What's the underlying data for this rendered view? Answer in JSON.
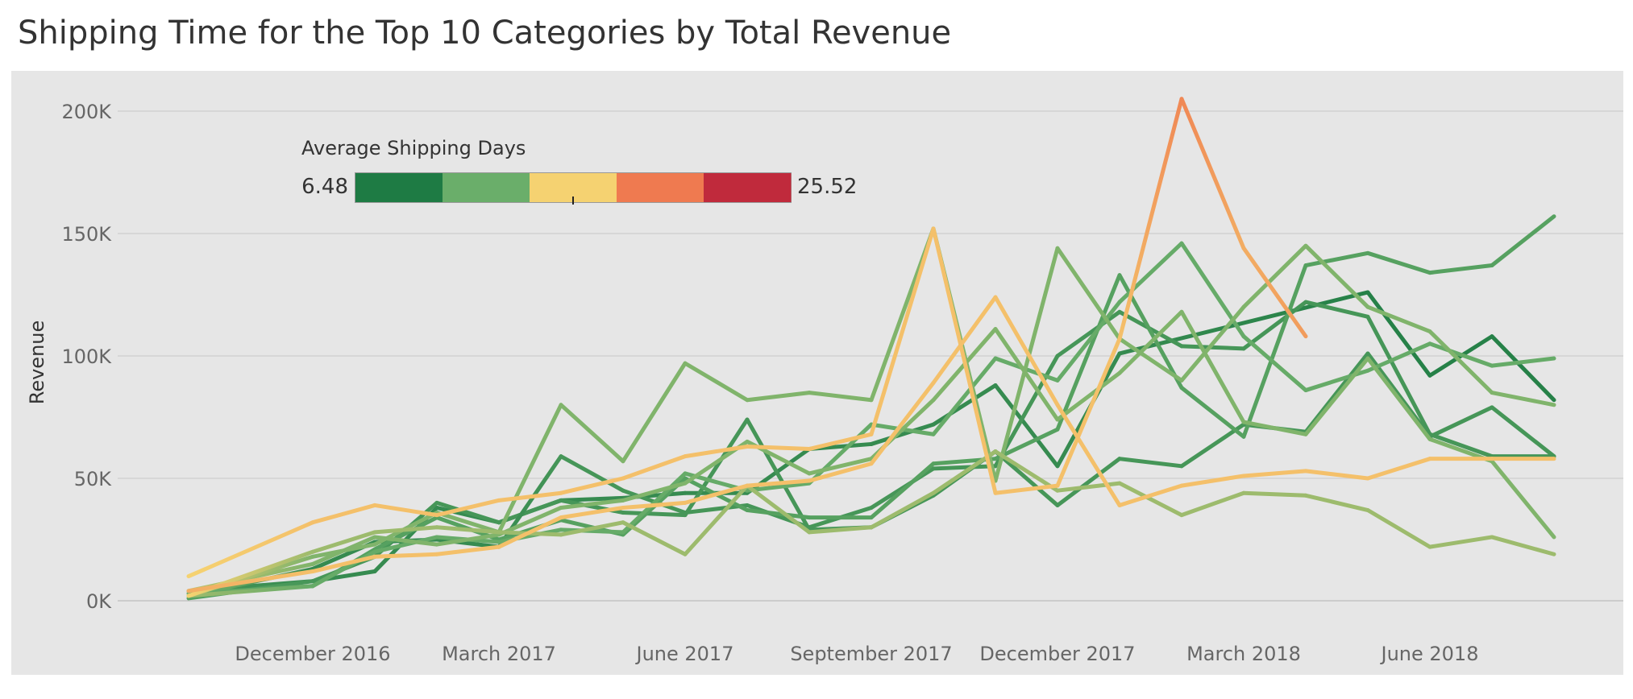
{
  "chart_data": {
    "type": "line",
    "title": "Shipping Time for the Top 10 Categories by Total Revenue",
    "ylabel": "Revenue",
    "xlabel": "",
    "x": [
      "2016-10",
      "2016-11",
      "2016-12",
      "2017-01",
      "2017-02",
      "2017-03",
      "2017-04",
      "2017-05",
      "2017-06",
      "2017-07",
      "2017-08",
      "2017-09",
      "2017-10",
      "2017-11",
      "2017-12",
      "2018-01",
      "2018-02",
      "2018-03",
      "2018-04",
      "2018-05",
      "2018-06",
      "2018-07",
      "2018-08"
    ],
    "x_tick_labels": [
      {
        "x": "2016-12",
        "label": "December 2016"
      },
      {
        "x": "2017-03",
        "label": "March 2017"
      },
      {
        "x": "2017-06",
        "label": "June 2017"
      },
      {
        "x": "2017-09",
        "label": "September 2017"
      },
      {
        "x": "2017-12",
        "label": "December 2017"
      },
      {
        "x": "2018-03",
        "label": "March 2018"
      },
      {
        "x": "2018-06",
        "label": "June 2018"
      }
    ],
    "y_ticks": [
      {
        "value": 0,
        "label": "0K"
      },
      {
        "value": 50000,
        "label": "50K"
      },
      {
        "value": 100000,
        "label": "100K"
      },
      {
        "value": 150000,
        "label": "150K"
      },
      {
        "value": 200000,
        "label": "200K"
      }
    ],
    "ylim": [
      0,
      200000
    ],
    "grid": true,
    "color_legend": {
      "title": "Average Shipping Days",
      "min_label": "6.48",
      "max_label": "25.52",
      "min": 6.48,
      "max": 25.52,
      "position": "top-left",
      "colors": [
        "#1e7b44",
        "#6aae6a",
        "#f5d271",
        "#ef7a50",
        "#c02a3c"
      ]
    },
    "series": [
      {
        "values": [
          4000,
          null,
          8000,
          12000,
          38000,
          32000,
          41000,
          42000,
          44000,
          44000,
          62000,
          64000,
          72000,
          88000,
          55000,
          101000,
          null,
          null,
          null,
          126000,
          92000,
          108000,
          82000
        ],
        "colors": [
          9,
          null,
          8,
          8,
          8,
          8,
          8,
          8,
          8,
          8,
          8,
          8,
          8,
          8,
          8,
          8,
          null,
          null,
          null,
          7,
          7,
          7,
          7
        ]
      },
      {
        "values": [
          1000,
          null,
          8000,
          18000,
          40000,
          32000,
          41000,
          36000,
          35000,
          74000,
          29000,
          30000,
          43000,
          61000,
          39000,
          58000,
          55000,
          72000,
          69000,
          101000,
          67000,
          79000,
          59000
        ],
        "colors": [
          10,
          null,
          9,
          9,
          9,
          9,
          9,
          9,
          9,
          9,
          9,
          9,
          9,
          9,
          9,
          9,
          9,
          9,
          9,
          9,
          9,
          9,
          9
        ]
      },
      {
        "values": [
          2000,
          null,
          13000,
          24000,
          25000,
          22000,
          59000,
          45000,
          36000,
          39000,
          30000,
          38000,
          54000,
          55000,
          100000,
          118000,
          104000,
          103000,
          122000,
          116000,
          68000,
          59000,
          59000
        ],
        "colors": [
          12,
          null,
          8,
          8,
          8,
          8,
          9,
          9,
          9,
          9,
          9,
          9,
          9,
          9,
          9,
          9,
          9,
          9,
          9,
          9,
          9,
          9,
          9
        ]
      },
      {
        "values": [
          3000,
          null,
          6000,
          21000,
          34000,
          25000,
          33000,
          27000,
          50000,
          37000,
          34000,
          34000,
          56000,
          58000,
          70000,
          133000,
          87000,
          67000,
          137000,
          142000,
          134000,
          137000,
          157000
        ],
        "colors": [
          11,
          null,
          10,
          10,
          10,
          10,
          10,
          10,
          10,
          10,
          10,
          10,
          10,
          10,
          10,
          10,
          10,
          10,
          10,
          10,
          10,
          10,
          10
        ]
      },
      {
        "values": [
          2000,
          null,
          6000,
          20000,
          26000,
          24000,
          29000,
          28000,
          52000,
          45000,
          48000,
          72000,
          68000,
          99000,
          90000,
          122000,
          146000,
          108000,
          86000,
          94000,
          105000,
          96000,
          99000
        ],
        "colors": [
          13,
          null,
          11,
          11,
          11,
          11,
          11,
          11,
          11,
          11,
          11,
          11,
          11,
          11,
          11,
          11,
          11,
          11,
          11,
          11,
          11,
          11,
          11
        ]
      },
      {
        "values": [
          4000,
          null,
          15000,
          26000,
          23000,
          27000,
          38000,
          41000,
          48000,
          65000,
          52000,
          58000,
          82000,
          111000,
          74000,
          93000,
          118000,
          73000,
          68000,
          99000,
          66000,
          57000,
          26000
        ],
        "colors": [
          14,
          null,
          12,
          12,
          12,
          12,
          12,
          12,
          12,
          12,
          12,
          12,
          12,
          12,
          12,
          12,
          12,
          12,
          12,
          12,
          12,
          12,
          12
        ]
      },
      {
        "values": [
          2000,
          null,
          18000,
          23000,
          36000,
          28000,
          80000,
          57000,
          97000,
          82000,
          85000,
          82000,
          152000,
          49000,
          144000,
          107000,
          90000,
          120000,
          145000,
          120000,
          110000,
          85000,
          80000
        ],
        "colors": [
          15,
          null,
          12,
          12,
          12,
          12,
          12,
          12,
          12,
          12,
          12,
          12,
          12,
          12,
          12,
          12,
          12,
          12,
          12,
          12,
          12,
          12,
          12
        ]
      },
      {
        "values": [
          2000,
          null,
          20000,
          28000,
          30000,
          28000,
          27000,
          32000,
          19000,
          47000,
          28000,
          30000,
          44000,
          61000,
          45000,
          48000,
          35000,
          44000,
          43000,
          37000,
          22000,
          26000,
          19000
        ],
        "colors": [
          16,
          null,
          13,
          13,
          13,
          13,
          13,
          13,
          13,
          13,
          13,
          13,
          13,
          13,
          13,
          13,
          13,
          13,
          13,
          13,
          13,
          13,
          13
        ]
      },
      {
        "values": [
          4000,
          null,
          12000,
          18000,
          19000,
          22000,
          34000,
          38000,
          40000,
          47000,
          49000,
          56000,
          89000,
          124000,
          80000,
          39000,
          47000,
          51000,
          53000,
          50000,
          58000,
          58000,
          58000
        ],
        "colors": [
          18,
          null,
          17,
          17,
          17,
          17,
          17,
          17,
          17,
          17,
          17,
          17,
          17,
          17,
          17,
          17,
          17,
          17,
          17,
          17,
          17,
          17,
          17
        ]
      },
      {
        "values": [
          10000,
          null,
          32000,
          39000,
          35000,
          41000,
          44000,
          50000,
          59000,
          63000,
          62000,
          68000,
          152000,
          44000,
          47000,
          107000,
          205000,
          144000,
          108000,
          null,
          null,
          null,
          null
        ],
        "colors": [
          16,
          null,
          17,
          17,
          17,
          17,
          17,
          17,
          17,
          17,
          17,
          17,
          17,
          17,
          17,
          17,
          20,
          18,
          19,
          null,
          null,
          null,
          null
        ]
      }
    ]
  }
}
